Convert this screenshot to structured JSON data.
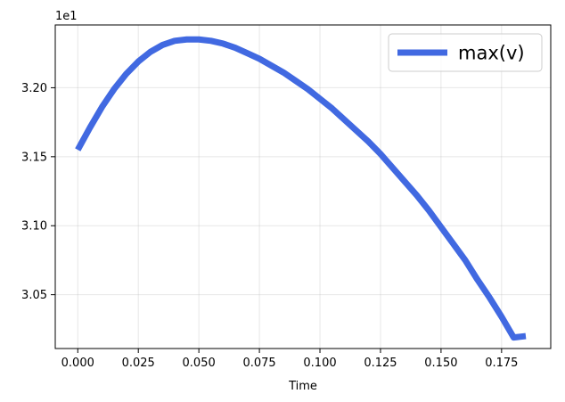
{
  "chart_data": {
    "type": "line",
    "title": "",
    "xlabel": "Time",
    "ylabel": "",
    "y_offset_label": "1e1",
    "xlim": [
      -0.0093,
      0.1953
    ],
    "ylim": [
      3.011,
      3.2455
    ],
    "x_ticks": [
      0.0,
      0.025,
      0.05,
      0.075,
      0.1,
      0.125,
      0.15,
      0.175
    ],
    "x_tick_labels": [
      "0.000",
      "0.025",
      "0.050",
      "0.075",
      "0.100",
      "0.125",
      "0.150",
      "0.175"
    ],
    "y_ticks": [
      3.05,
      3.1,
      3.15,
      3.2
    ],
    "y_tick_labels": [
      "3.05",
      "3.10",
      "3.15",
      "3.20"
    ],
    "grid": true,
    "legend": {
      "position": "top-right"
    },
    "series": [
      {
        "name": "max(v)",
        "color": "#4169e1",
        "x": [
          0.0,
          0.005,
          0.01,
          0.015,
          0.02,
          0.025,
          0.03,
          0.035,
          0.04,
          0.045,
          0.05,
          0.055,
          0.06,
          0.065,
          0.07,
          0.075,
          0.08,
          0.085,
          0.09,
          0.095,
          0.1,
          0.105,
          0.11,
          0.115,
          0.12,
          0.125,
          0.13,
          0.135,
          0.14,
          0.145,
          0.15,
          0.155,
          0.16,
          0.165,
          0.17,
          0.175,
          0.18,
          0.185
        ],
        "y": [
          3.155,
          3.171,
          3.186,
          3.199,
          3.21,
          3.219,
          3.226,
          3.231,
          3.234,
          3.235,
          3.235,
          3.234,
          3.232,
          3.229,
          3.225,
          3.221,
          3.216,
          3.211,
          3.205,
          3.199,
          3.192,
          3.185,
          3.177,
          3.169,
          3.161,
          3.152,
          3.142,
          3.132,
          3.122,
          3.111,
          3.099,
          3.087,
          3.075,
          3.061,
          3.048,
          3.034,
          3.019,
          3.02
        ]
      }
    ]
  }
}
